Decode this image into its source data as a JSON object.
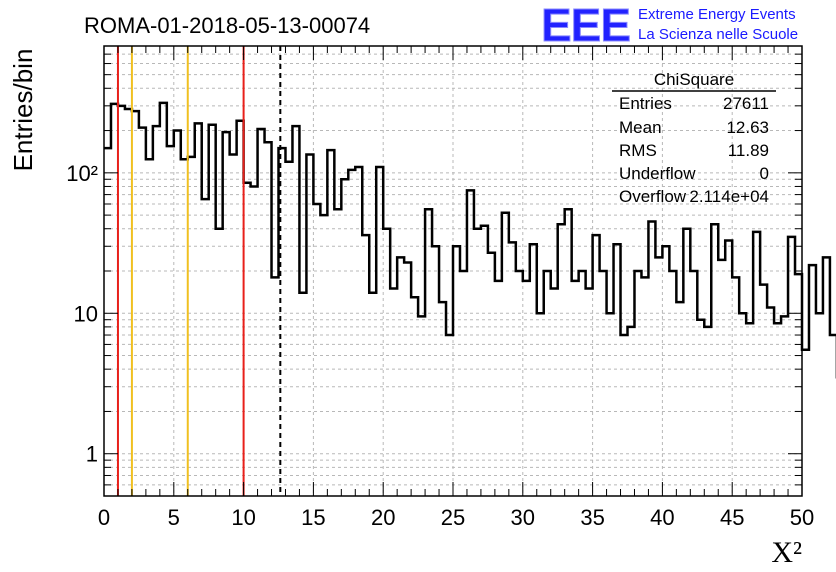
{
  "title": "ROMA-01-2018-05-13-00074",
  "logo": {
    "mark": "EEE",
    "line1": "Extreme Energy Events",
    "line2": "La Scienza nelle Scuole"
  },
  "stats": {
    "name": "ChiSquare",
    "rows": [
      {
        "label": "Entries",
        "value": "27611"
      },
      {
        "label": "Mean",
        "value": "12.63"
      },
      {
        "label": "RMS",
        "value": "11.89"
      },
      {
        "label": "Underflow",
        "value": "0"
      },
      {
        "label": "Overflow",
        "value": "2.114e+04"
      }
    ]
  },
  "chart_data": {
    "type": "histogram",
    "title": "ROMA-01-2018-05-13-00074",
    "xlabel": "X²",
    "ylabel": "Entries/bin",
    "xlim": [
      0,
      50
    ],
    "ylim": [
      0.5,
      800
    ],
    "yscale": "log",
    "grid": true,
    "bin_width": 0.5,
    "x_ticks": [
      "0",
      "5",
      "10",
      "15",
      "20",
      "25",
      "30",
      "35",
      "40",
      "45",
      "50"
    ],
    "y_ticks": [
      {
        "value": 1,
        "label": "1"
      },
      {
        "value": 10,
        "label": "10"
      },
      {
        "value": 100,
        "label": "10²"
      }
    ],
    "values": [
      150,
      310,
      300,
      285,
      275,
      210,
      125,
      215,
      315,
      155,
      200,
      125,
      130,
      225,
      65,
      220,
      40,
      195,
      135,
      235,
      85,
      80,
      205,
      165,
      18,
      150,
      120,
      215,
      14,
      135,
      60,
      50,
      145,
      55,
      90,
      105,
      110,
      36,
      14,
      110,
      40,
      15,
      25,
      23,
      13,
      9.5,
      55,
      30,
      12,
      7,
      30,
      20,
      75,
      40,
      42,
      27,
      17,
      52,
      32,
      20,
      17,
      31,
      10,
      20,
      15,
      43,
      55,
      17,
      20,
      15,
      36,
      20,
      10,
      31,
      7,
      8,
      20,
      18,
      45,
      25,
      30,
      20,
      12,
      40,
      20,
      9,
      8,
      43,
      24,
      33,
      18,
      10,
      8.5,
      38,
      16,
      11,
      8.5,
      9.5,
      35,
      19,
      5.5,
      22,
      10,
      25,
      7,
      3.5,
      15,
      20,
      19,
      32,
      13,
      8,
      3,
      19,
      8,
      15,
      17,
      8,
      45,
      14,
      15,
      17,
      16,
      12,
      1,
      5,
      13,
      5
    ],
    "vertical_lines": [
      {
        "x": 1,
        "color": "#e8201a",
        "style": "solid"
      },
      {
        "x": 2,
        "color": "#f0c020",
        "style": "solid"
      },
      {
        "x": 6,
        "color": "#f0c020",
        "style": "solid"
      },
      {
        "x": 10,
        "color": "#e8201a",
        "style": "solid"
      },
      {
        "x": 12.63,
        "color": "#000000",
        "style": "dashed"
      }
    ]
  }
}
